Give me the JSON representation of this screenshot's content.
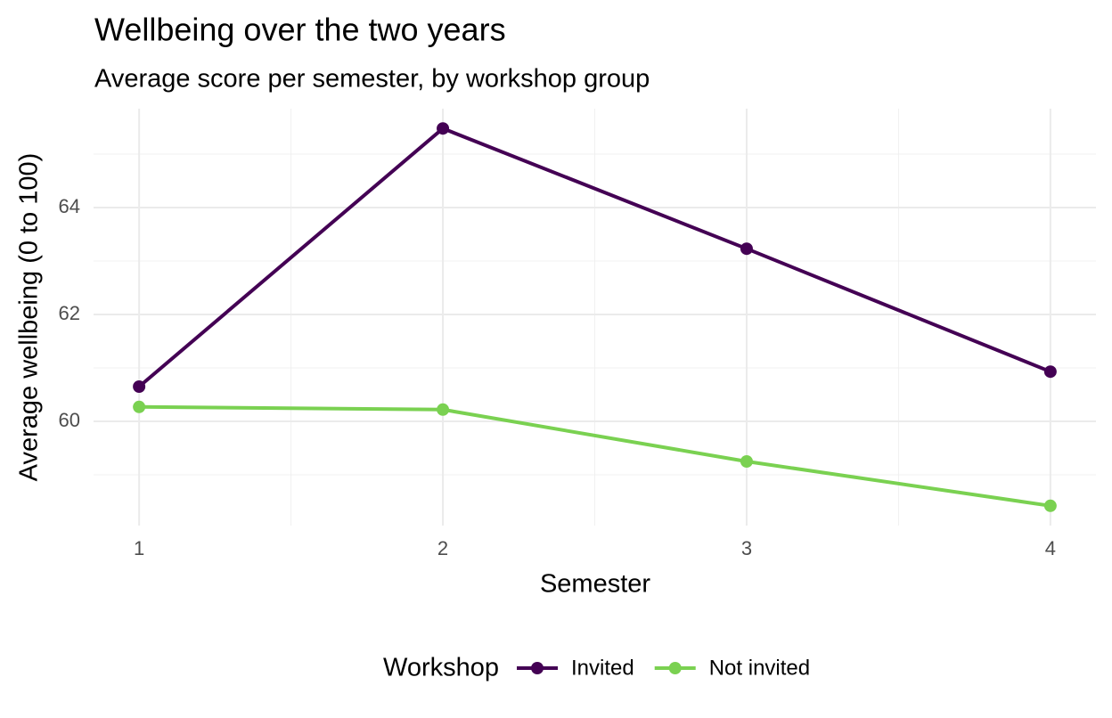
{
  "chart_data": {
    "type": "line",
    "title": "Wellbeing over the two years",
    "subtitle": "Average score per semester, by workshop group",
    "x_label": "Semester",
    "y_label": "Average wellbeing (0 to 100)",
    "x": [
      1,
      2,
      3,
      4
    ],
    "series": [
      {
        "name": "Invited",
        "color": "#440154",
        "values": [
          60.65,
          65.48,
          63.23,
          60.93
        ]
      },
      {
        "name": "Not invited",
        "color": "#7AD151",
        "values": [
          60.27,
          60.22,
          59.25,
          58.42
        ]
      }
    ],
    "xlim": [
      0.85,
      4.15
    ],
    "xticks": [
      1,
      2,
      3,
      4
    ],
    "ylim": [
      58.05,
      65.85
    ],
    "yticks": [
      60,
      62,
      64
    ],
    "grid": true,
    "minor_grid": true,
    "legend_title": "Workshop",
    "legend_position": "bottom"
  }
}
